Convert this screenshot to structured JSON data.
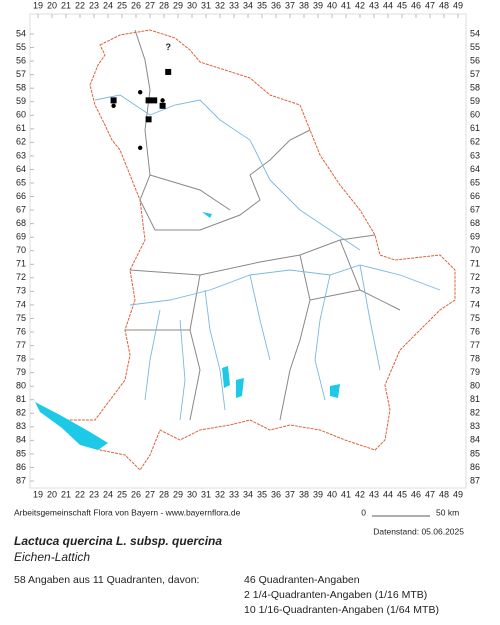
{
  "map": {
    "x_labels": [
      19,
      20,
      21,
      22,
      23,
      24,
      25,
      26,
      27,
      28,
      29,
      30,
      31,
      32,
      33,
      34,
      35,
      36,
      37,
      38,
      39,
      40,
      41,
      42,
      43,
      44,
      45,
      46,
      47,
      48,
      49
    ],
    "y_labels": [
      54,
      55,
      56,
      57,
      58,
      59,
      60,
      61,
      62,
      63,
      64,
      65,
      66,
      67,
      68,
      69,
      70,
      71,
      72,
      73,
      74,
      75,
      76,
      77,
      78,
      79,
      80,
      81,
      82,
      83,
      84,
      85,
      86,
      87
    ],
    "unknown_marker": {
      "label": "?",
      "col": 28.3,
      "row": 55.0
    },
    "markers": [
      {
        "shape": "square",
        "col": 28.3,
        "row": 56.8
      },
      {
        "shape": "square",
        "col": 24.4,
        "row": 58.9
      },
      {
        "shape": "square",
        "col": 26.9,
        "row": 58.9
      },
      {
        "shape": "square",
        "col": 27.3,
        "row": 58.9
      },
      {
        "shape": "square",
        "col": 27.9,
        "row": 59.3
      },
      {
        "shape": "square",
        "col": 26.9,
        "row": 60.3
      },
      {
        "shape": "dot",
        "col": 26.3,
        "row": 58.3
      },
      {
        "shape": "dot",
        "col": 24.4,
        "row": 59.3
      },
      {
        "shape": "dot",
        "col": 27.9,
        "row": 58.9
      },
      {
        "shape": "dot",
        "col": 26.3,
        "row": 62.4
      }
    ]
  },
  "footer": {
    "credit": "Arbeitsgemeinschaft Flora von Bayern - www.bayernflora.de",
    "scale_start": "0",
    "scale_end": "50 km",
    "date": "Datenstand: 05.06.2025",
    "title": "Lactuca quercina L. subsp. quercina",
    "subtitle": "Eichen-Lattich",
    "summary": "58 Angaben aus 11 Quadranten, davon:",
    "stats": [
      "46 Quadranten-Angaben",
      "2 1/4-Quadranten-Angaben (1/16 MTB)",
      "10 1/16-Quadranten-Angaben (1/64 MTB)"
    ]
  }
}
